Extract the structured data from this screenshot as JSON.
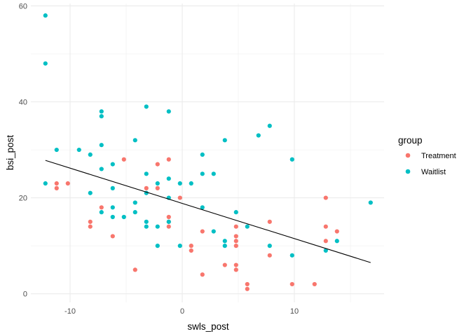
{
  "chart_data": {
    "type": "scatter",
    "title": "",
    "xlabel": "swls_post",
    "ylabel": "bsi_post",
    "xlim": [
      -13.5,
      18
    ],
    "ylim": [
      -1.8,
      60.5
    ],
    "x_ticks": [
      -10,
      0,
      10
    ],
    "y_ticks": [
      0,
      20,
      40,
      60
    ],
    "x_tick_labels": [
      "-10",
      "0",
      "10"
    ],
    "y_tick_labels": [
      "0",
      "20",
      "40",
      "60"
    ],
    "grid": true,
    "legend": {
      "title": "group",
      "position": "right"
    },
    "series": [
      {
        "name": "Treatment",
        "color": "#F8766D",
        "points": [
          [
            -11.2,
            23
          ],
          [
            -11.2,
            22
          ],
          [
            -10.2,
            23
          ],
          [
            -8.2,
            15
          ],
          [
            -8.2,
            14
          ],
          [
            -7.2,
            18
          ],
          [
            -6.2,
            12
          ],
          [
            -5.2,
            28
          ],
          [
            -4.2,
            5
          ],
          [
            -3.2,
            22
          ],
          [
            -2.2,
            27
          ],
          [
            -2.2,
            22
          ],
          [
            -1.2,
            28
          ],
          [
            -1.2,
            16
          ],
          [
            -1.2,
            15
          ],
          [
            -1.2,
            14
          ],
          [
            -0.2,
            20
          ],
          [
            0.8,
            10
          ],
          [
            0.8,
            9
          ],
          [
            1.8,
            13
          ],
          [
            1.8,
            4
          ],
          [
            3.8,
            6
          ],
          [
            4.8,
            14
          ],
          [
            4.8,
            12
          ],
          [
            4.8,
            11
          ],
          [
            4.8,
            10
          ],
          [
            4.8,
            6
          ],
          [
            4.8,
            5
          ],
          [
            5.8,
            2
          ],
          [
            5.8,
            1
          ],
          [
            7.8,
            15
          ],
          [
            7.8,
            8
          ],
          [
            9.8,
            2
          ],
          [
            11.8,
            2
          ],
          [
            12.8,
            20
          ],
          [
            12.8,
            14
          ],
          [
            12.8,
            11
          ],
          [
            13.8,
            13
          ]
        ]
      },
      {
        "name": "Waitlist",
        "color": "#00BFC4",
        "points": [
          [
            -12.2,
            58
          ],
          [
            -12.2,
            48
          ],
          [
            -12.2,
            23
          ],
          [
            -11.2,
            30
          ],
          [
            -9.2,
            30
          ],
          [
            -8.2,
            29
          ],
          [
            -8.2,
            21
          ],
          [
            -7.2,
            38
          ],
          [
            -7.2,
            37
          ],
          [
            -7.2,
            31
          ],
          [
            -7.2,
            26
          ],
          [
            -7.2,
            17
          ],
          [
            -6.2,
            27
          ],
          [
            -6.2,
            22
          ],
          [
            -6.2,
            18
          ],
          [
            -6.2,
            16
          ],
          [
            -5.2,
            16
          ],
          [
            -4.2,
            32
          ],
          [
            -4.2,
            19
          ],
          [
            -4.2,
            17
          ],
          [
            -3.2,
            39
          ],
          [
            -3.2,
            25
          ],
          [
            -3.2,
            21
          ],
          [
            -3.2,
            15
          ],
          [
            -3.2,
            14
          ],
          [
            -2.2,
            23
          ],
          [
            -2.2,
            14
          ],
          [
            -2.2,
            10
          ],
          [
            -1.2,
            38
          ],
          [
            -1.2,
            24
          ],
          [
            -1.2,
            20
          ],
          [
            -1.2,
            15
          ],
          [
            -0.2,
            23
          ],
          [
            -0.2,
            10
          ],
          [
            0.8,
            23
          ],
          [
            1.8,
            29
          ],
          [
            1.8,
            25
          ],
          [
            1.8,
            18
          ],
          [
            2.8,
            25
          ],
          [
            2.8,
            13
          ],
          [
            3.8,
            32
          ],
          [
            3.8,
            11
          ],
          [
            3.8,
            10
          ],
          [
            4.8,
            17
          ],
          [
            5.8,
            14
          ],
          [
            6.8,
            33
          ],
          [
            7.8,
            35
          ],
          [
            7.8,
            10
          ],
          [
            9.8,
            28
          ],
          [
            9.8,
            8
          ],
          [
            12.8,
            9
          ],
          [
            13.8,
            11
          ],
          [
            16.8,
            19
          ]
        ]
      }
    ],
    "trend_line": {
      "color": "#000000",
      "points": [
        [
          -12.2,
          27.8
        ],
        [
          16.8,
          6.5
        ]
      ]
    }
  }
}
